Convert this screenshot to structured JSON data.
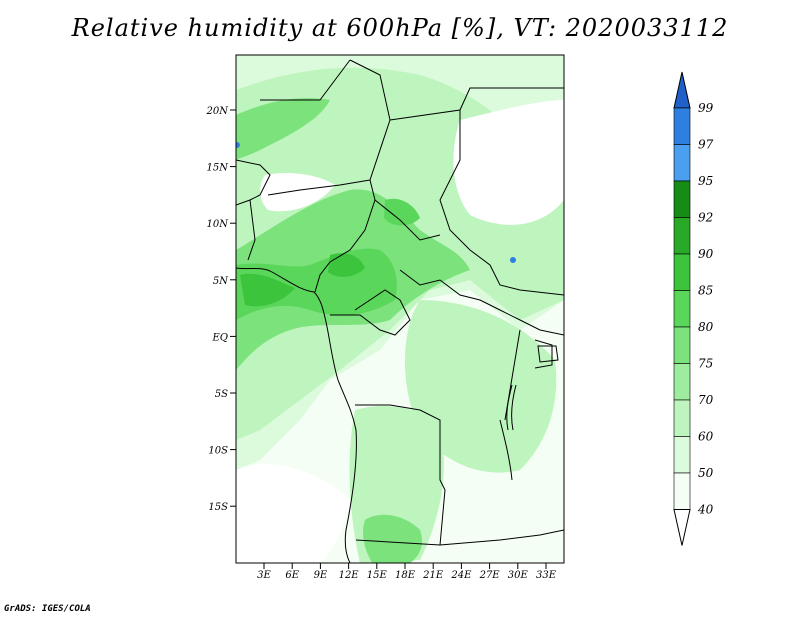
{
  "title": "Relative humidity at 600hPa [%], VT: 2020033112",
  "credit": "GrADS: IGES/COLA",
  "latitude_ticks": [
    "20N",
    "15N",
    "10N",
    "5N",
    "EQ",
    "5S",
    "10S",
    "15S"
  ],
  "longitude_ticks": [
    "3E",
    "6E",
    "9E",
    "12E",
    "15E",
    "18E",
    "21E",
    "24E",
    "27E",
    "30E",
    "33E"
  ],
  "colorbar": {
    "labels": [
      "99",
      "97",
      "95",
      "92",
      "90",
      "85",
      "80",
      "75",
      "70",
      "60",
      "50",
      "40"
    ],
    "colors": [
      "#2060c8",
      "#2e80e0",
      "#4aa0ee",
      "#168c16",
      "#28aa28",
      "#3cc43c",
      "#5ad65a",
      "#7ce27c",
      "#9eec9e",
      "#bef4be",
      "#dcfadc",
      "#f4fef4"
    ]
  },
  "field_palette": {
    "land_moist": "#5ad65a",
    "moist": "#3cc43c",
    "wet": "#28aa28",
    "light": "#bef4be",
    "pale": "#dcfadc",
    "dry": "#ffffff"
  }
}
